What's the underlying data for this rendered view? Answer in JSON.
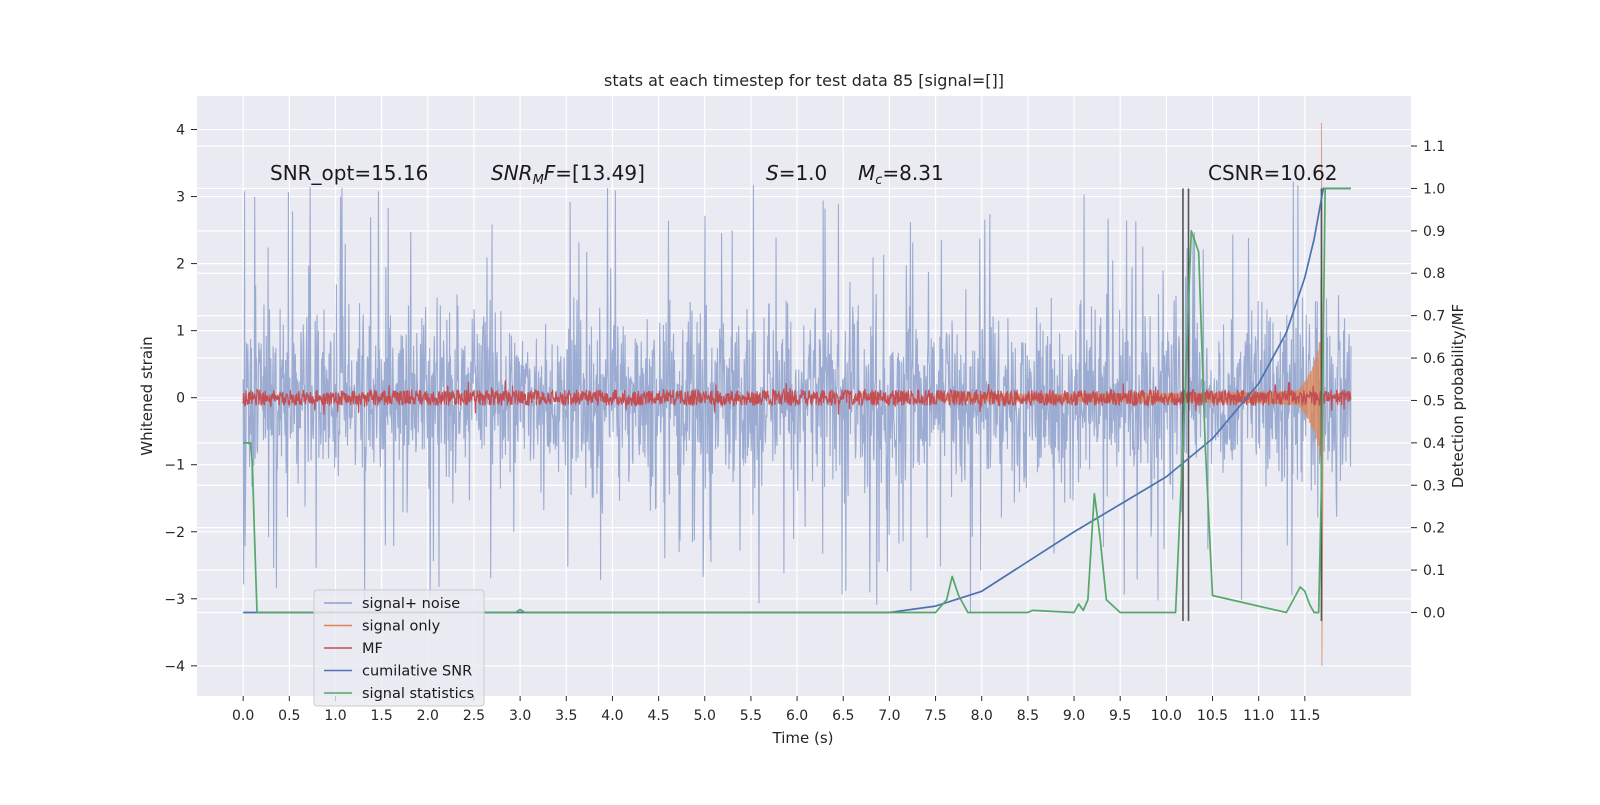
{
  "chart_data": {
    "type": "line",
    "title": "stats at each timestep for test data 85 [signal=[]]",
    "xlabel": "Time (s)",
    "ylabel": "Whitened strain",
    "ylabel_right": "Detection probability/MF",
    "xlim": [
      -0.5,
      12.65
    ],
    "ylim": [
      -4.45,
      4.5
    ],
    "ylim_right": [
      -0.197,
      1.218
    ],
    "x_ticks": [
      "0.0",
      "0.5",
      "1.0",
      "1.5",
      "2.0",
      "2.5",
      "3.0",
      "3.5",
      "4.0",
      "4.5",
      "5.0",
      "5.5",
      "6.0",
      "6.5",
      "7.0",
      "7.5",
      "8.0",
      "8.5",
      "9.0",
      "9.5",
      "10.0",
      "10.5",
      "11.0",
      "11.5"
    ],
    "y_ticks": [
      "4",
      "3",
      "2",
      "1",
      "0",
      "−1",
      "−2",
      "−3",
      "−4"
    ],
    "y_right_ticks": [
      "1.1",
      "1.0",
      "0.9",
      "0.8",
      "0.7",
      "0.6",
      "0.5",
      "0.4",
      "0.3",
      "0.2",
      "0.1",
      "0.0"
    ],
    "grid": true,
    "legend_position": "lower-left",
    "colors": {
      "noise": "#8da0cb",
      "signal": "#dd8452",
      "mf": "#c44e52",
      "csnr": "#4c72b0",
      "stat": "#55a868",
      "vline": "#555555",
      "background": "#eaeaf2"
    },
    "annotations": [
      {
        "label": "SNR_opt=15.16"
      },
      {
        "label_main": "SNR",
        "label_sub": "M",
        "label_rest": "F=[13.49]"
      },
      {
        "label_main": "S",
        "label_rest": "=1.0"
      },
      {
        "label_main": "M",
        "label_sub": "c",
        "label_rest": "=8.31"
      },
      {
        "label": "CSNR=10.62"
      }
    ],
    "detection_lines_s": [
      10.18,
      10.24,
      11.68
    ],
    "series": [
      {
        "name": "signal+ noise",
        "axis": "left",
        "t_end": 12.0,
        "envelope_typical": [
          -1.2,
          1.3
        ],
        "peak_range": [
          -4.1,
          3.3
        ]
      },
      {
        "name": "signal only",
        "axis": "left",
        "chirp_start": 7.8,
        "merger_time": 11.68,
        "peak_amplitude": 4.1,
        "min_amplitude": -4.0
      },
      {
        "name": "MF",
        "axis": "left",
        "baseline": 0.0,
        "noise_amplitude": 0.12,
        "spike": {
          "t": 11.68,
          "value": 1.0
        }
      },
      {
        "name": "cumilative SNR",
        "axis": "right",
        "x": [
          0.0,
          7.0,
          7.5,
          8.0,
          8.5,
          9.0,
          9.5,
          10.0,
          10.5,
          11.0,
          11.3,
          11.5,
          11.6,
          11.7,
          12.0
        ],
        "y": [
          0.0,
          0.0,
          0.015,
          0.05,
          0.12,
          0.19,
          0.255,
          0.32,
          0.41,
          0.54,
          0.66,
          0.79,
          0.88,
          1.0,
          1.0
        ]
      },
      {
        "name": "signal statistics",
        "axis": "right",
        "x": [
          0.0,
          0.05,
          0.08,
          0.1,
          0.12,
          0.15,
          0.2,
          2.95,
          3.0,
          3.05,
          7.5,
          7.62,
          7.68,
          7.75,
          7.85,
          8.5,
          8.55,
          9.0,
          9.05,
          9.1,
          9.15,
          9.22,
          9.28,
          9.35,
          9.5,
          9.55,
          9.7,
          10.1,
          10.2,
          10.27,
          10.35,
          10.42,
          10.5,
          11.3,
          11.45,
          11.5,
          11.55,
          11.6,
          11.65,
          11.68,
          11.72,
          11.76,
          11.8,
          12.0
        ],
        "y": [
          0.4,
          0.4,
          0.4,
          0.35,
          0.2,
          0.0,
          0.0,
          0.0,
          0.007,
          0.0,
          0.0,
          0.03,
          0.085,
          0.04,
          0.0,
          0.0,
          0.005,
          0.0,
          0.02,
          0.005,
          0.03,
          0.28,
          0.18,
          0.03,
          0.0,
          0.0,
          0.0,
          0.0,
          0.5,
          0.9,
          0.85,
          0.4,
          0.04,
          0.0,
          0.06,
          0.05,
          0.02,
          0.0,
          0.0,
          0.3,
          1.0,
          1.0,
          1.0,
          1.0
        ]
      }
    ]
  }
}
